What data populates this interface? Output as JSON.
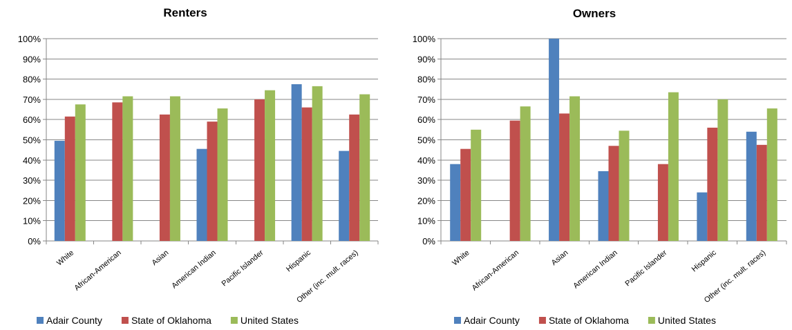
{
  "colors": {
    "Adair County": "#4f81bd",
    "State of Oklahoma": "#c0504d",
    "United States": "#9bbb59",
    "grid": "#868686",
    "axis": "#868686",
    "text": "#000000"
  },
  "chart_data": [
    {
      "type": "bar",
      "title": "Renters",
      "categories": [
        "White",
        "African-American",
        "Asian",
        "American Indian",
        "Pacific Islander",
        "Hispanic",
        "Other (inc. mult. races)"
      ],
      "series": [
        {
          "name": "Adair County",
          "values": [
            49.5,
            null,
            null,
            45.5,
            null,
            77.5,
            44.5
          ]
        },
        {
          "name": "State of Oklahoma",
          "values": [
            61.5,
            68.5,
            62.5,
            59,
            70,
            66,
            62.5
          ]
        },
        {
          "name": "United States",
          "values": [
            67.5,
            71.5,
            71.5,
            65.5,
            74.5,
            76.5,
            72.5
          ]
        }
      ],
      "yticks": [
        "0%",
        "10%",
        "20%",
        "30%",
        "40%",
        "50%",
        "60%",
        "70%",
        "80%",
        "90%",
        "100%"
      ],
      "ylim": [
        0,
        100
      ],
      "grid": true,
      "legend": "bottom"
    },
    {
      "type": "bar",
      "title": "Owners",
      "categories": [
        "White",
        "African-American",
        "Asian",
        "American Indian",
        "Pacific Islander",
        "Hispanic",
        "Other (inc. mult. races)"
      ],
      "series": [
        {
          "name": "Adair County",
          "values": [
            38,
            null,
            100,
            34.5,
            null,
            24,
            54
          ]
        },
        {
          "name": "State of Oklahoma",
          "values": [
            45.5,
            59.5,
            63,
            47,
            38,
            56,
            47.5
          ]
        },
        {
          "name": "United States",
          "values": [
            55,
            66.5,
            71.5,
            54.5,
            73.5,
            70,
            65.5
          ]
        }
      ],
      "yticks": [
        "0%",
        "10%",
        "20%",
        "30%",
        "40%",
        "50%",
        "60%",
        "70%",
        "80%",
        "90%",
        "100%"
      ],
      "ylim": [
        0,
        100
      ],
      "grid": true,
      "legend": "bottom"
    }
  ]
}
